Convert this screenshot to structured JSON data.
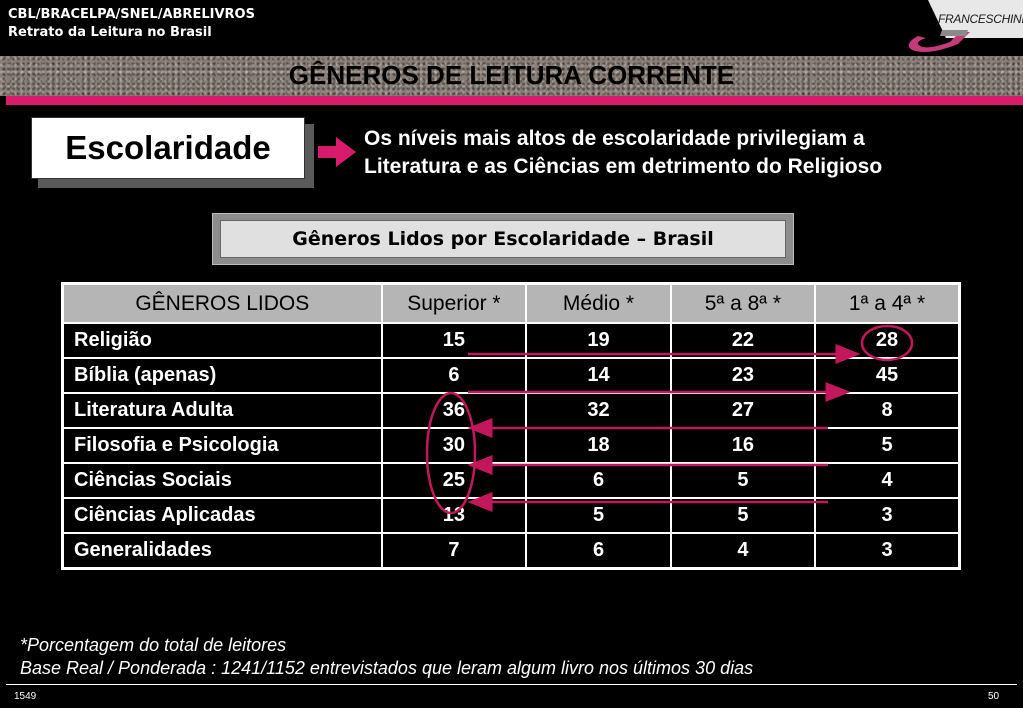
{
  "header": {
    "line1": "CBL/BRACELPA/SNEL/ABRELIVROS",
    "line2": "Retrato da Leitura no Brasil",
    "logo_text": "FRANCESCHINI"
  },
  "title": "GÊNEROS DE LEITURA CORRENTE",
  "section_label": "Escolaridade",
  "note": {
    "line1": "Os níveis mais altos de escolaridade privilegiam a",
    "line2": "Literatura e as Ciências em detrimento do Religioso"
  },
  "subtitle": "Gêneros Lidos por Escolaridade  – Brasil",
  "table": {
    "headers": [
      "GÊNEROS LIDOS",
      "Superior *",
      "Médio *",
      "5ª a 8ª *",
      "1ª a 4ª *"
    ],
    "rows": [
      {
        "label": "Religião",
        "values": [
          "15",
          "19",
          "22",
          "28"
        ]
      },
      {
        "label": "Bíblia (apenas)",
        "values": [
          "6",
          "14",
          "23",
          "45"
        ]
      },
      {
        "label": "Literatura Adulta",
        "values": [
          "36",
          "32",
          "27",
          "8"
        ]
      },
      {
        "label": "Filosofia e Psicologia",
        "values": [
          "30",
          "18",
          "16",
          "5"
        ]
      },
      {
        "label": "Ciências Sociais",
        "values": [
          "25",
          "6",
          "5",
          "4"
        ]
      },
      {
        "label": "Ciências Aplicadas",
        "values": [
          "13",
          "5",
          "5",
          "3"
        ]
      },
      {
        "label": "Generalidades",
        "values": [
          "7",
          "6",
          "4",
          "3"
        ]
      }
    ]
  },
  "footnotes": {
    "line1": "*Porcentagem do total de leitores",
    "line2": "Base Real / Ponderada : 1241/1152 entrevistados que  leram algum  livro nos últimos 30 dias"
  },
  "page": {
    "left": "1549",
    "right": "50"
  },
  "colors": {
    "accent": "#d81b6a",
    "background": "#000000",
    "header_cell": "#b5b5b5"
  }
}
